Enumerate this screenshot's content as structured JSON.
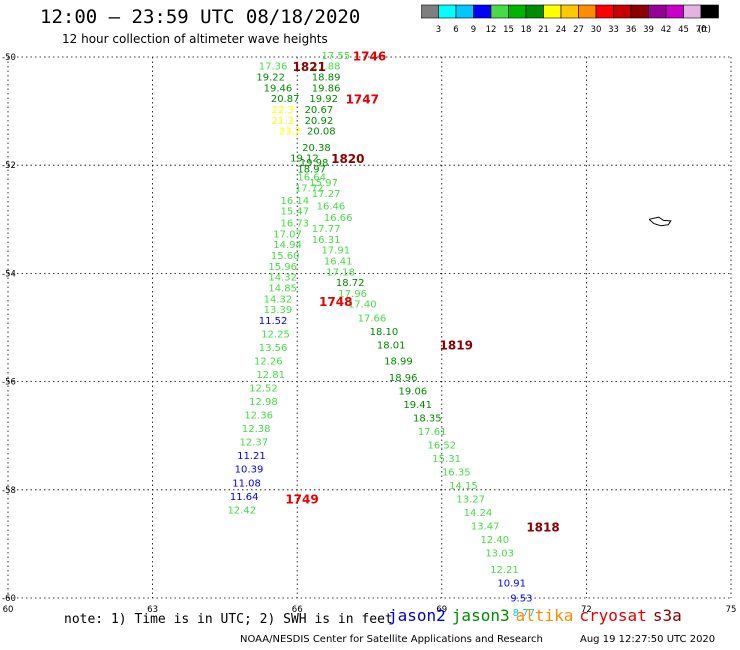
{
  "header": {
    "title": "12:00 – 23:59 UTC 08/18/2020",
    "subtitle": "12 hour collection of altimeter wave heights"
  },
  "colorbar": {
    "colors": [
      "#7f7f7f",
      "#00ffff",
      "#00c8ff",
      "#0000ff",
      "#46dc46",
      "#00b400",
      "#008c00",
      "#ffff00",
      "#ffc800",
      "#ff8c00",
      "#ff0000",
      "#c80000",
      "#8c0000",
      "#960096",
      "#c800c8",
      "#e1b4e1",
      "#000000"
    ],
    "labels": [
      "3",
      "6",
      "9",
      "12",
      "15",
      "18",
      "21",
      "24",
      "27",
      "30",
      "33",
      "36",
      "39",
      "42",
      "45",
      "70"
    ],
    "unit": "(ft)"
  },
  "footer": {
    "note": "note: 1) Time is in UTC; 2) SWH is in feet",
    "credit": "NOAA/NESDIS Center for Satellite Applications and Research",
    "timestamp": "Aug 19 12:27:50 UTC 2020",
    "legend": [
      {
        "name": "jason2",
        "color": "#0000cc"
      },
      {
        "name": "jason3",
        "color": "#008c00"
      },
      {
        "name": "altika",
        "color": "#ff8c00"
      },
      {
        "name": "cryosat",
        "color": "#e60000"
      },
      {
        "name": "s3a",
        "color": "#8c0000"
      }
    ]
  },
  "chart_data": {
    "type": "scatter",
    "xlim": [
      60,
      75
    ],
    "ylim": [
      -60,
      -50
    ],
    "xticks": [
      "60",
      "63",
      "66",
      "69",
      "72",
      "75"
    ],
    "yticks": [
      "-50",
      "-52",
      "-54",
      "-56",
      "-58",
      "-60"
    ],
    "grid": true,
    "land": [
      [
        73.3,
        -53.0
      ],
      [
        73.5,
        -52.96
      ],
      [
        73.6,
        -53.02
      ],
      [
        73.75,
        -53.03
      ],
      [
        73.7,
        -53.1
      ],
      [
        73.55,
        -53.12
      ],
      [
        73.4,
        -53.08
      ],
      [
        73.3,
        -53.0
      ]
    ],
    "time_labels": [
      {
        "text": "1746",
        "x": 67.5,
        "y": -49.98,
        "color": "#e60000"
      },
      {
        "text": "1821",
        "x": 66.25,
        "y": -50.18,
        "color": "#8c0000"
      },
      {
        "text": "1747",
        "x": 67.35,
        "y": -50.78,
        "color": "#e60000"
      },
      {
        "text": "1820",
        "x": 67.05,
        "y": -51.88,
        "color": "#8c0000"
      },
      {
        "text": "1748",
        "x": 66.8,
        "y": -54.52,
        "color": "#e60000"
      },
      {
        "text": "1819",
        "x": 69.3,
        "y": -55.32,
        "color": "#8c0000"
      },
      {
        "text": "1749",
        "x": 66.1,
        "y": -58.17,
        "color": "#e60000"
      },
      {
        "text": "1818",
        "x": 71.1,
        "y": -58.69,
        "color": "#8c0000"
      }
    ],
    "points": [
      {
        "x": 66.8,
        "y": -49.97,
        "v": "17.55",
        "c": "#46dc46"
      },
      {
        "x": 65.5,
        "y": -50.17,
        "v": "17.36",
        "c": "#46dc46"
      },
      {
        "x": 66.6,
        "y": -50.17,
        "v": "17.88",
        "c": "#46dc46"
      },
      {
        "x": 65.45,
        "y": -50.37,
        "v": "19.22",
        "c": "#008c00"
      },
      {
        "x": 66.6,
        "y": -50.37,
        "v": "18.89",
        "c": "#008c00"
      },
      {
        "x": 65.6,
        "y": -50.57,
        "v": "19.46",
        "c": "#008c00"
      },
      {
        "x": 66.6,
        "y": -50.57,
        "v": "19.86",
        "c": "#008c00"
      },
      {
        "x": 65.75,
        "y": -50.77,
        "v": "20.87",
        "c": "#008c00"
      },
      {
        "x": 66.55,
        "y": -50.77,
        "v": "19.92",
        "c": "#008c00"
      },
      {
        "x": 65.7,
        "y": -50.97,
        "v": "22.3",
        "c": "#ffff00"
      },
      {
        "x": 66.45,
        "y": -50.97,
        "v": "20.67",
        "c": "#008c00"
      },
      {
        "x": 65.7,
        "y": -51.17,
        "v": "21.3",
        "c": "#ffff00"
      },
      {
        "x": 66.45,
        "y": -51.17,
        "v": "20.92",
        "c": "#008c00"
      },
      {
        "x": 65.85,
        "y": -51.37,
        "v": "23.2",
        "c": "#ffff00"
      },
      {
        "x": 66.5,
        "y": -51.37,
        "v": "20.08",
        "c": "#008c00"
      },
      {
        "x": 66.4,
        "y": -51.67,
        "v": "20.38",
        "c": "#008c00"
      },
      {
        "x": 66.15,
        "y": -51.87,
        "v": "19.12",
        "c": "#008c00"
      },
      {
        "x": 66.35,
        "y": -51.95,
        "v": "19.98",
        "c": "#008c00"
      },
      {
        "x": 66.3,
        "y": -52.07,
        "v": "18.97",
        "c": "#008c00"
      },
      {
        "x": 66.3,
        "y": -52.22,
        "v": "16.64",
        "c": "#46dc46"
      },
      {
        "x": 66.55,
        "y": -52.32,
        "v": "15.97",
        "c": "#46dc46"
      },
      {
        "x": 66.25,
        "y": -52.42,
        "v": "17.72",
        "c": "#46dc46"
      },
      {
        "x": 66.6,
        "y": -52.52,
        "v": "17.27",
        "c": "#46dc46"
      },
      {
        "x": 65.95,
        "y": -52.65,
        "v": "16.14",
        "c": "#46dc46"
      },
      {
        "x": 66.7,
        "y": -52.75,
        "v": "16.46",
        "c": "#46dc46"
      },
      {
        "x": 65.95,
        "y": -52.85,
        "v": "15.47",
        "c": "#46dc46"
      },
      {
        "x": 66.85,
        "y": -52.97,
        "v": "16.66",
        "c": "#46dc46"
      },
      {
        "x": 65.95,
        "y": -53.07,
        "v": "16.73",
        "c": "#46dc46"
      },
      {
        "x": 66.6,
        "y": -53.17,
        "v": "17.77",
        "c": "#46dc46"
      },
      {
        "x": 65.8,
        "y": -53.27,
        "v": "17.07",
        "c": "#46dc46"
      },
      {
        "x": 66.6,
        "y": -53.37,
        "v": "16.31",
        "c": "#46dc46"
      },
      {
        "x": 65.8,
        "y": -53.47,
        "v": "14.94",
        "c": "#46dc46"
      },
      {
        "x": 66.8,
        "y": -53.57,
        "v": "17.91",
        "c": "#46dc46"
      },
      {
        "x": 65.75,
        "y": -53.67,
        "v": "15.60",
        "c": "#46dc46"
      },
      {
        "x": 66.85,
        "y": -53.77,
        "v": "16.41",
        "c": "#46dc46"
      },
      {
        "x": 65.7,
        "y": -53.87,
        "v": "15.96",
        "c": "#46dc46"
      },
      {
        "x": 66.9,
        "y": -53.97,
        "v": "17.18",
        "c": "#46dc46"
      },
      {
        "x": 65.7,
        "y": -54.07,
        "v": "14.32",
        "c": "#46dc46"
      },
      {
        "x": 67.1,
        "y": -54.17,
        "v": "18.72",
        "c": "#008c00"
      },
      {
        "x": 65.7,
        "y": -54.27,
        "v": "14.85",
        "c": "#46dc46"
      },
      {
        "x": 67.15,
        "y": -54.37,
        "v": "17.96",
        "c": "#46dc46"
      },
      {
        "x": 65.6,
        "y": -54.47,
        "v": "14.32",
        "c": "#46dc46"
      },
      {
        "x": 67.35,
        "y": -54.57,
        "v": "17.40",
        "c": "#46dc46"
      },
      {
        "x": 65.6,
        "y": -54.67,
        "v": "13.39",
        "c": "#46dc46"
      },
      {
        "x": 67.55,
        "y": -54.82,
        "v": "17.66",
        "c": "#46dc46"
      },
      {
        "x": 65.5,
        "y": -54.87,
        "v": "11.52",
        "c": "#0000ff"
      },
      {
        "x": 67.8,
        "y": -55.07,
        "v": "18.10",
        "c": "#008c00"
      },
      {
        "x": 65.55,
        "y": -55.12,
        "v": "12.25",
        "c": "#46dc46"
      },
      {
        "x": 67.95,
        "y": -55.32,
        "v": "18.01",
        "c": "#008c00"
      },
      {
        "x": 65.5,
        "y": -55.37,
        "v": "13.56",
        "c": "#46dc46"
      },
      {
        "x": 68.1,
        "y": -55.62,
        "v": "18.99",
        "c": "#008c00"
      },
      {
        "x": 65.4,
        "y": -55.62,
        "v": "12.26",
        "c": "#46dc46"
      },
      {
        "x": 68.2,
        "y": -55.92,
        "v": "18.96",
        "c": "#008c00"
      },
      {
        "x": 65.45,
        "y": -55.87,
        "v": "12.81",
        "c": "#46dc46"
      },
      {
        "x": 68.4,
        "y": -56.17,
        "v": "19.06",
        "c": "#008c00"
      },
      {
        "x": 65.3,
        "y": -56.12,
        "v": "12.52",
        "c": "#46dc46"
      },
      {
        "x": 68.5,
        "y": -56.42,
        "v": "19.41",
        "c": "#008c00"
      },
      {
        "x": 65.3,
        "y": -56.37,
        "v": "12.98",
        "c": "#46dc46"
      },
      {
        "x": 68.7,
        "y": -56.67,
        "v": "18.35",
        "c": "#008c00"
      },
      {
        "x": 65.2,
        "y": -56.62,
        "v": "12.36",
        "c": "#46dc46"
      },
      {
        "x": 68.8,
        "y": -56.92,
        "v": "17.61",
        "c": "#46dc46"
      },
      {
        "x": 65.15,
        "y": -56.87,
        "v": "12.38",
        "c": "#46dc46"
      },
      {
        "x": 69.0,
        "y": -57.17,
        "v": "16.52",
        "c": "#46dc46"
      },
      {
        "x": 65.1,
        "y": -57.12,
        "v": "12.37",
        "c": "#46dc46"
      },
      {
        "x": 69.1,
        "y": -57.42,
        "v": "15.31",
        "c": "#46dc46"
      },
      {
        "x": 65.05,
        "y": -57.37,
        "v": "11.21",
        "c": "#0000ff"
      },
      {
        "x": 69.3,
        "y": -57.67,
        "v": "16.35",
        "c": "#46dc46"
      },
      {
        "x": 65.0,
        "y": -57.62,
        "v": "10.39",
        "c": "#0000ff"
      },
      {
        "x": 69.45,
        "y": -57.92,
        "v": "14.15",
        "c": "#46dc46"
      },
      {
        "x": 64.95,
        "y": -57.87,
        "v": "11.08",
        "c": "#0000ff"
      },
      {
        "x": 69.6,
        "y": -58.17,
        "v": "13.27",
        "c": "#46dc46"
      },
      {
        "x": 64.9,
        "y": -58.12,
        "v": "11.64",
        "c": "#0000ff"
      },
      {
        "x": 69.75,
        "y": -58.42,
        "v": "14.24",
        "c": "#46dc46"
      },
      {
        "x": 64.85,
        "y": -58.37,
        "v": "12.42",
        "c": "#46dc46"
      },
      {
        "x": 69.9,
        "y": -58.67,
        "v": "13.47",
        "c": "#46dc46"
      },
      {
        "x": 70.1,
        "y": -58.92,
        "v": "12.40",
        "c": "#46dc46"
      },
      {
        "x": 70.2,
        "y": -59.17,
        "v": "13.03",
        "c": "#46dc46"
      },
      {
        "x": 70.3,
        "y": -59.47,
        "v": "12.21",
        "c": "#46dc46"
      },
      {
        "x": 70.45,
        "y": -59.72,
        "v": "10.91",
        "c": "#0000ff"
      },
      {
        "x": 70.65,
        "y": -60.0,
        "v": "9.53",
        "c": "#0000ff"
      },
      {
        "x": 70.7,
        "y": -60.27,
        "v": "8.77",
        "c": "#00c8ff"
      }
    ]
  }
}
